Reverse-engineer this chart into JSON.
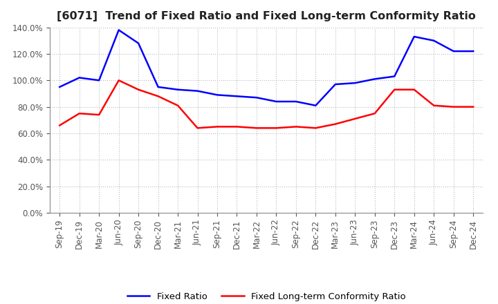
{
  "title": "[6071]  Trend of Fixed Ratio and Fixed Long-term Conformity Ratio",
  "x_labels": [
    "Sep-19",
    "Dec-19",
    "Mar-20",
    "Jun-20",
    "Sep-20",
    "Dec-20",
    "Mar-21",
    "Jun-21",
    "Sep-21",
    "Dec-21",
    "Mar-22",
    "Jun-22",
    "Sep-22",
    "Dec-22",
    "Mar-23",
    "Jun-23",
    "Sep-23",
    "Dec-23",
    "Mar-24",
    "Jun-24",
    "Sep-24",
    "Dec-24"
  ],
  "fixed_ratio": [
    0.95,
    1.02,
    1.0,
    1.38,
    1.28,
    0.95,
    0.93,
    0.92,
    0.89,
    0.88,
    0.87,
    0.84,
    0.84,
    0.81,
    0.97,
    0.98,
    1.01,
    1.03,
    1.33,
    1.3,
    1.22,
    1.22
  ],
  "fixed_longterm": [
    0.66,
    0.75,
    0.74,
    1.0,
    0.93,
    0.88,
    0.81,
    0.64,
    0.65,
    0.65,
    0.64,
    0.64,
    0.65,
    0.64,
    0.67,
    0.71,
    0.75,
    0.93,
    0.93,
    0.81,
    0.8,
    0.8
  ],
  "fixed_ratio_color": "#0000FF",
  "fixed_longterm_color": "#FF0000",
  "background_color": "#FFFFFF",
  "grid_color": "#AAAAAA",
  "ylim": [
    0.0,
    1.4
  ],
  "yticks": [
    0.0,
    0.2,
    0.4,
    0.6,
    0.8,
    1.0,
    1.2,
    1.4
  ],
  "legend_fixed_ratio": "Fixed Ratio",
  "legend_fixed_longterm": "Fixed Long-term Conformity Ratio",
  "title_fontsize": 11.5,
  "tick_fontsize": 8.5,
  "legend_fontsize": 9.5
}
